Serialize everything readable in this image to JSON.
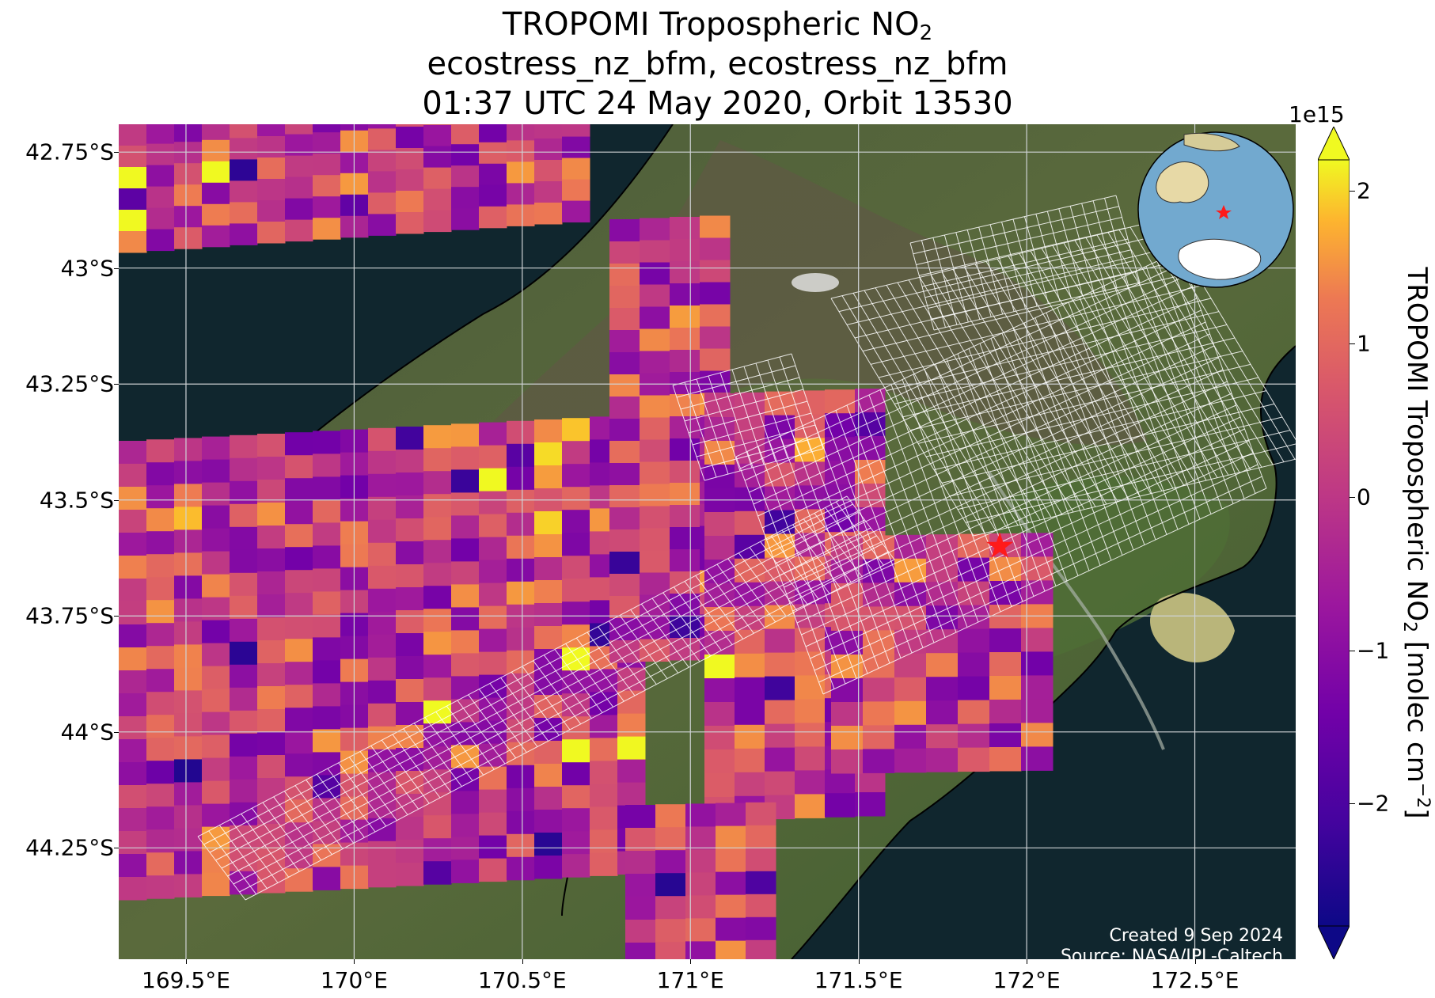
{
  "title": {
    "line1_prefix": "TROPOMI Tropospheric NO",
    "line1_sub": "2",
    "line2": "ecostress_nz_bfm, ecostress_nz_bfm",
    "line3": "01:37 UTC 24 May 2020, Orbit 13530"
  },
  "map": {
    "lon_range": [
      169.3,
      172.8
    ],
    "lat_range": [
      -44.49,
      -42.69
    ],
    "lat_ticks": [
      {
        "value": -42.75,
        "label": "42.75°S"
      },
      {
        "value": -43.0,
        "label": "43°S"
      },
      {
        "value": -43.25,
        "label": "43.25°S"
      },
      {
        "value": -43.5,
        "label": "43.5°S"
      },
      {
        "value": -43.75,
        "label": "43.75°S"
      },
      {
        "value": -44.0,
        "label": "44°S"
      },
      {
        "value": -44.25,
        "label": "44.25°S"
      }
    ],
    "lon_ticks": [
      {
        "value": 169.5,
        "label": "169.5°E"
      },
      {
        "value": 170.0,
        "label": "170°E"
      },
      {
        "value": 170.5,
        "label": "170.5°E"
      },
      {
        "value": 171.0,
        "label": "171°E"
      },
      {
        "value": 171.5,
        "label": "171.5°E"
      },
      {
        "value": 172.0,
        "label": "172°E"
      },
      {
        "value": 172.5,
        "label": "172.5°E"
      }
    ],
    "gridlines": true,
    "target_marker": {
      "lon": 171.92,
      "lat": -43.6,
      "color": "#ff1a1a"
    },
    "colors": {
      "ocean": "#0f2a33",
      "land": "#3f5a32",
      "mountain": "#6b6048",
      "snow": "#e8e8e8",
      "grid": "#cfd3d6",
      "footprint": "#ffffff"
    },
    "inset_globe": {
      "ocean": "#6fa8cf",
      "land": "#e7d9a6",
      "ice": "#ffffff"
    },
    "credit_line1": "Created 9 Sep 2024",
    "credit_line2": "Source: NASA/JPL-Caltech"
  },
  "colorbar": {
    "exponent": "1e15",
    "vmin": -2.8,
    "vmax": 2.2,
    "ticks": [
      {
        "value": 2,
        "label": "2"
      },
      {
        "value": 1,
        "label": "1"
      },
      {
        "value": 0,
        "label": "0"
      },
      {
        "value": -1,
        "label": "−1"
      },
      {
        "value": -2,
        "label": "−2"
      }
    ],
    "colormap": "plasma",
    "extend": "both",
    "title_prefix": "TROPOMI Tropospheric NO",
    "title_sub": "2",
    "title_mid": " [molec cm",
    "title_sup": "−2",
    "title_suffix": "]"
  }
}
